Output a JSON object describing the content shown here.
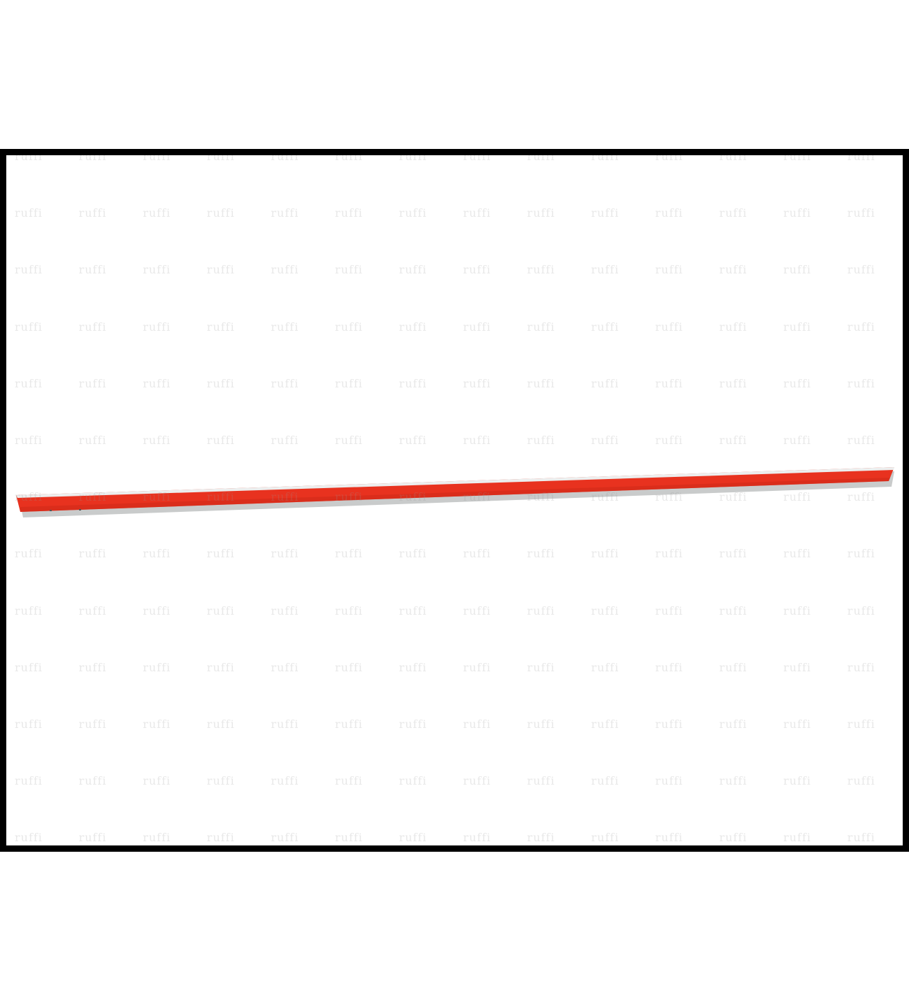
{
  "image": {
    "background_color": "#ffffff",
    "frame_color": "#000000",
    "product": {
      "name_icon": "red-trim-strip",
      "main_color": "#e8321f",
      "edge_color": "#c9cbcb",
      "edge_highlight_color": "#eceeee"
    },
    "watermark": {
      "text": "ruffi",
      "color": "#969696"
    }
  }
}
